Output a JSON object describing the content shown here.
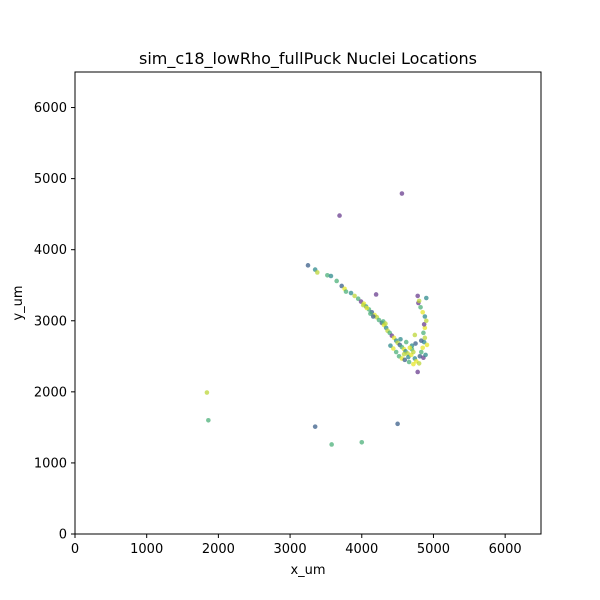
{
  "chart_data": {
    "type": "scatter",
    "title": "sim_c18_lowRho_fullPuck Nuclei Locations",
    "xlabel": "x_um",
    "ylabel": "y_um",
    "xlim": [
      0,
      6500
    ],
    "ylim": [
      0,
      6500
    ],
    "x_ticks": [
      0,
      1000,
      2000,
      3000,
      4000,
      5000,
      6000
    ],
    "y_ticks": [
      0,
      1000,
      2000,
      3000,
      4000,
      5000,
      6000
    ],
    "x_tick_labels": [
      "0",
      "1000",
      "2000",
      "3000",
      "4000",
      "5000",
      "6000"
    ],
    "y_tick_labels": [
      "0",
      "1000",
      "2000",
      "3000",
      "4000",
      "5000",
      "6000"
    ],
    "grid": false,
    "colormap": "viridis",
    "point_colors": {
      "purple": "#6a3d8f",
      "blue": "#3b5f8a",
      "teal": "#2f8b8c",
      "green": "#4cb07a",
      "lime": "#bcd638",
      "yellow": "#e5e52a"
    },
    "points": [
      {
        "x": 4560,
        "y": 4790,
        "c": "purple"
      },
      {
        "x": 3690,
        "y": 4480,
        "c": "purple"
      },
      {
        "x": 1840,
        "y": 1990,
        "c": "lime"
      },
      {
        "x": 1860,
        "y": 1600,
        "c": "green"
      },
      {
        "x": 3350,
        "y": 1510,
        "c": "blue"
      },
      {
        "x": 3580,
        "y": 1260,
        "c": "green"
      },
      {
        "x": 4000,
        "y": 1290,
        "c": "green"
      },
      {
        "x": 4500,
        "y": 1550,
        "c": "blue"
      },
      {
        "x": 3250,
        "y": 3780,
        "c": "blue"
      },
      {
        "x": 3350,
        "y": 3720,
        "c": "teal"
      },
      {
        "x": 3380,
        "y": 3680,
        "c": "lime"
      },
      {
        "x": 3520,
        "y": 3640,
        "c": "green"
      },
      {
        "x": 3570,
        "y": 3630,
        "c": "teal"
      },
      {
        "x": 3650,
        "y": 3560,
        "c": "green"
      },
      {
        "x": 3720,
        "y": 3490,
        "c": "blue"
      },
      {
        "x": 3760,
        "y": 3450,
        "c": "yellow"
      },
      {
        "x": 3780,
        "y": 3410,
        "c": "green"
      },
      {
        "x": 3850,
        "y": 3390,
        "c": "teal"
      },
      {
        "x": 3900,
        "y": 3350,
        "c": "lime"
      },
      {
        "x": 3950,
        "y": 3310,
        "c": "green"
      },
      {
        "x": 3990,
        "y": 3270,
        "c": "purple"
      },
      {
        "x": 4030,
        "y": 3240,
        "c": "yellow"
      },
      {
        "x": 4060,
        "y": 3200,
        "c": "teal"
      },
      {
        "x": 4100,
        "y": 3160,
        "c": "green"
      },
      {
        "x": 4140,
        "y": 3120,
        "c": "blue"
      },
      {
        "x": 4180,
        "y": 3080,
        "c": "yellow"
      },
      {
        "x": 4210,
        "y": 3050,
        "c": "lime"
      },
      {
        "x": 4240,
        "y": 3010,
        "c": "green"
      },
      {
        "x": 4200,
        "y": 3370,
        "c": "purple"
      },
      {
        "x": 4280,
        "y": 2970,
        "c": "blue"
      },
      {
        "x": 4310,
        "y": 2940,
        "c": "yellow"
      },
      {
        "x": 4340,
        "y": 2900,
        "c": "teal"
      },
      {
        "x": 4360,
        "y": 2860,
        "c": "lime"
      },
      {
        "x": 4390,
        "y": 2830,
        "c": "green"
      },
      {
        "x": 4420,
        "y": 2790,
        "c": "purple"
      },
      {
        "x": 4450,
        "y": 2760,
        "c": "yellow"
      },
      {
        "x": 4480,
        "y": 2720,
        "c": "teal"
      },
      {
        "x": 4500,
        "y": 2690,
        "c": "lime"
      },
      {
        "x": 4530,
        "y": 2660,
        "c": "blue"
      },
      {
        "x": 4560,
        "y": 2630,
        "c": "green"
      },
      {
        "x": 4590,
        "y": 2600,
        "c": "yellow"
      },
      {
        "x": 4610,
        "y": 2570,
        "c": "teal"
      },
      {
        "x": 4640,
        "y": 2540,
        "c": "lime"
      },
      {
        "x": 4520,
        "y": 2500,
        "c": "green"
      },
      {
        "x": 4560,
        "y": 2470,
        "c": "yellow"
      },
      {
        "x": 4600,
        "y": 2450,
        "c": "blue"
      },
      {
        "x": 4650,
        "y": 2490,
        "c": "teal"
      },
      {
        "x": 4690,
        "y": 2520,
        "c": "yellow"
      },
      {
        "x": 4700,
        "y": 2600,
        "c": "green"
      },
      {
        "x": 4720,
        "y": 2560,
        "c": "lime"
      },
      {
        "x": 4740,
        "y": 2470,
        "c": "teal"
      },
      {
        "x": 4760,
        "y": 2430,
        "c": "yellow"
      },
      {
        "x": 4780,
        "y": 2280,
        "c": "purple"
      },
      {
        "x": 4800,
        "y": 2400,
        "c": "lime"
      },
      {
        "x": 4810,
        "y": 2500,
        "c": "blue"
      },
      {
        "x": 4830,
        "y": 2560,
        "c": "green"
      },
      {
        "x": 4850,
        "y": 2620,
        "c": "yellow"
      },
      {
        "x": 4870,
        "y": 2700,
        "c": "teal"
      },
      {
        "x": 4880,
        "y": 2760,
        "c": "lime"
      },
      {
        "x": 4860,
        "y": 2830,
        "c": "green"
      },
      {
        "x": 4880,
        "y": 2900,
        "c": "yellow"
      },
      {
        "x": 4870,
        "y": 2950,
        "c": "purple"
      },
      {
        "x": 4900,
        "y": 3000,
        "c": "lime"
      },
      {
        "x": 4880,
        "y": 3060,
        "c": "teal"
      },
      {
        "x": 4850,
        "y": 3120,
        "c": "yellow"
      },
      {
        "x": 4820,
        "y": 3190,
        "c": "green"
      },
      {
        "x": 4790,
        "y": 3250,
        "c": "purple"
      },
      {
        "x": 4780,
        "y": 3350,
        "c": "purple"
      },
      {
        "x": 4900,
        "y": 3320,
        "c": "teal"
      },
      {
        "x": 4800,
        "y": 3280,
        "c": "lime"
      },
      {
        "x": 4700,
        "y": 2650,
        "c": "teal"
      },
      {
        "x": 4670,
        "y": 2620,
        "c": "yellow"
      },
      {
        "x": 4750,
        "y": 2680,
        "c": "blue"
      },
      {
        "x": 4620,
        "y": 2700,
        "c": "green"
      },
      {
        "x": 4540,
        "y": 2740,
        "c": "teal"
      },
      {
        "x": 4590,
        "y": 2530,
        "c": "lime"
      },
      {
        "x": 4480,
        "y": 2560,
        "c": "green"
      },
      {
        "x": 4440,
        "y": 2610,
        "c": "yellow"
      },
      {
        "x": 4400,
        "y": 2650,
        "c": "teal"
      },
      {
        "x": 4660,
        "y": 2420,
        "c": "green"
      },
      {
        "x": 4720,
        "y": 2390,
        "c": "yellow"
      },
      {
        "x": 4830,
        "y": 2720,
        "c": "blue"
      },
      {
        "x": 4860,
        "y": 2480,
        "c": "purple"
      },
      {
        "x": 4890,
        "y": 2520,
        "c": "teal"
      },
      {
        "x": 4910,
        "y": 2660,
        "c": "yellow"
      },
      {
        "x": 4740,
        "y": 2800,
        "c": "lime"
      },
      {
        "x": 4070,
        "y": 3180,
        "c": "yellow"
      },
      {
        "x": 4120,
        "y": 3100,
        "c": "green"
      },
      {
        "x": 4160,
        "y": 3060,
        "c": "blue"
      },
      {
        "x": 4020,
        "y": 3220,
        "c": "lime"
      },
      {
        "x": 4300,
        "y": 2990,
        "c": "green"
      },
      {
        "x": 4330,
        "y": 2960,
        "c": "lime"
      }
    ]
  }
}
